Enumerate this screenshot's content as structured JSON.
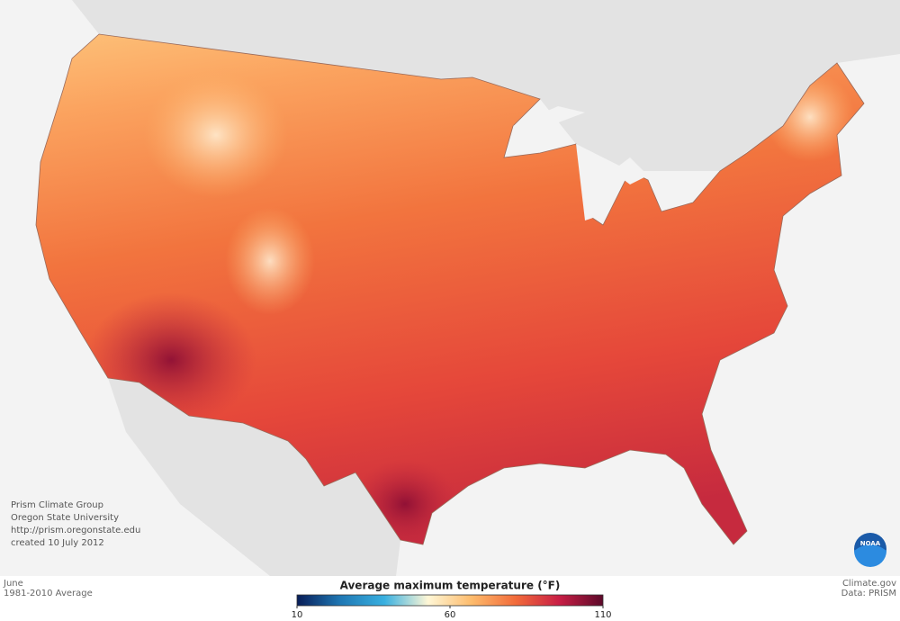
{
  "credits": [
    "Prism Climate Group",
    "Oregon State University",
    "http://prism.oregonstate.edu",
    "created 10 July 2012"
  ],
  "period": {
    "month": "June",
    "normal": "1981-2010 Average"
  },
  "source": {
    "site": "Climate.gov",
    "data": "Data: PRISM"
  },
  "logo": "NOAA",
  "legend": {
    "title": "Average maximum temperature (°F)",
    "lim": [
      10,
      110
    ],
    "ticks": [
      10,
      60,
      110
    ],
    "colors": [
      "#081d58",
      "#1f78b4",
      "#39b0e0",
      "#fff7d6",
      "#fdbb6c",
      "#f26b3a",
      "#c81e45",
      "#5c0a2a"
    ]
  }
}
